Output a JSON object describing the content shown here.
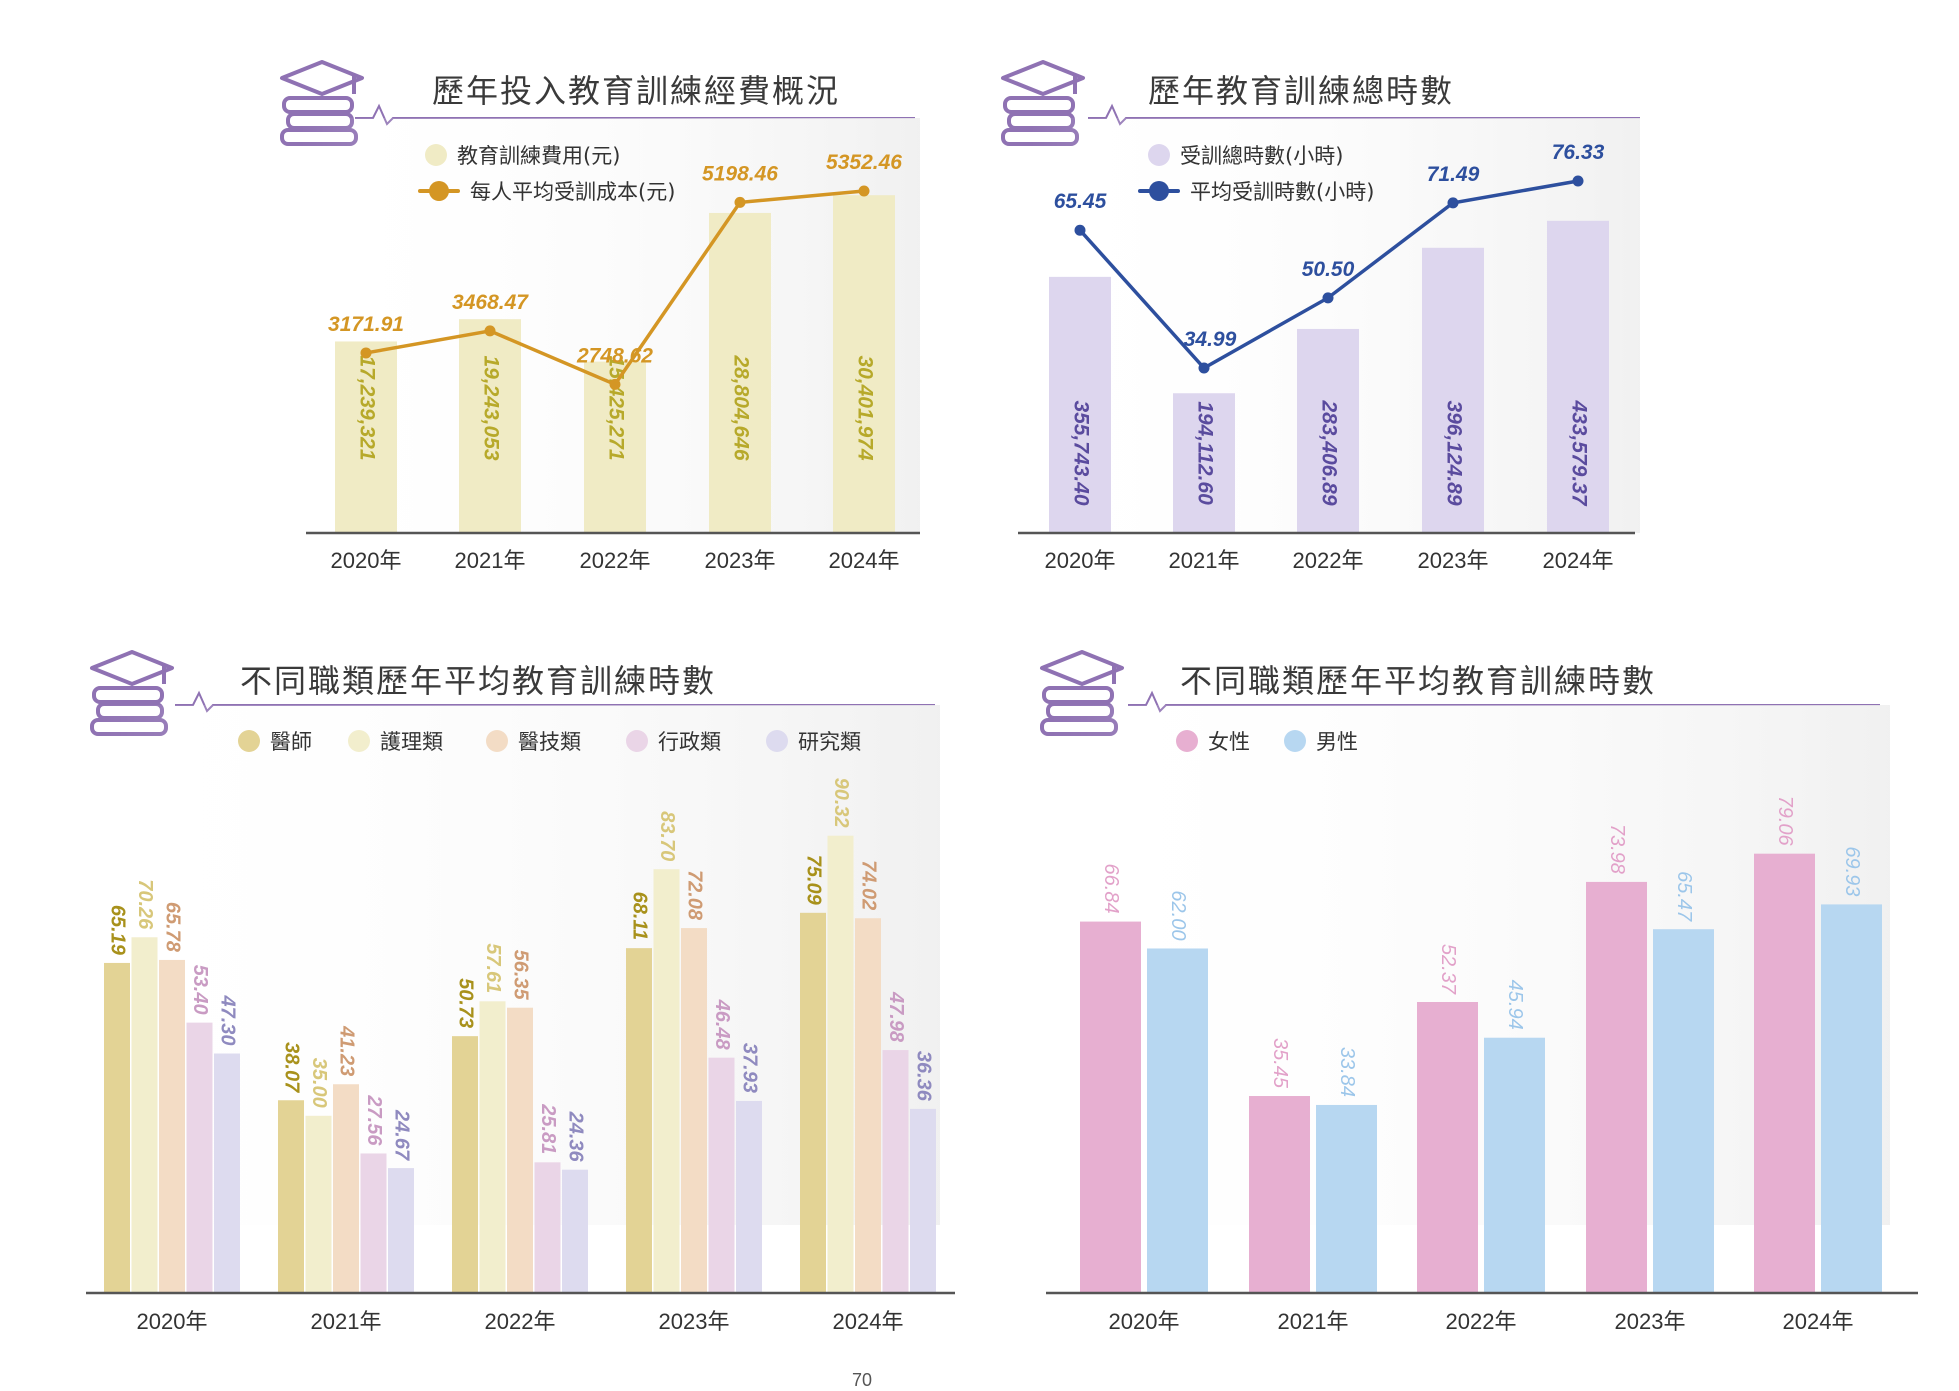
{
  "page_number": "70",
  "chart_data": [
    {
      "id": "c1",
      "type": "bar",
      "title": "歷年投入教育訓練經費概況",
      "categories": [
        "2020年",
        "2021年",
        "2022年",
        "2023年",
        "2024年"
      ],
      "series": [
        {
          "name": "教育訓練費用(元)",
          "type": "bar",
          "values": [
            17239321,
            19243053,
            15425271,
            28804646,
            30401974
          ],
          "labels": [
            "17,239,321",
            "19,243,053",
            "15,425,271",
            "28,804,646",
            "30,401,974"
          ],
          "color": "#f0ebc5",
          "label_color": "#b7a92a"
        },
        {
          "name": "每人平均受訓成本(元)",
          "type": "line",
          "values": [
            3171.91,
            3468.47,
            2748.62,
            5198.46,
            5352.46
          ],
          "labels": [
            "3171.91",
            "3468.47",
            "2748.62",
            "5198.46",
            "5352.46"
          ],
          "color": "#d49624"
        }
      ],
      "legend": "top-left",
      "grid": false
    },
    {
      "id": "c2",
      "type": "bar",
      "title": "歷年教育訓練總時數",
      "categories": [
        "2020年",
        "2021年",
        "2022年",
        "2023年",
        "2024年"
      ],
      "series": [
        {
          "name": "受訓總時數(小時)",
          "type": "bar",
          "values": [
            355743.4,
            194112.6,
            283406.89,
            396124.89,
            433579.37
          ],
          "labels": [
            "355,743.40",
            "194,112.60",
            "283,406.89",
            "396,124.89",
            "433,579.37"
          ],
          "color": "#ddd6ee",
          "label_color": "#5a4b9e"
        },
        {
          "name": "平均受訓時數(小時)",
          "type": "line",
          "values": [
            65.45,
            34.99,
            50.5,
            71.49,
            76.33
          ],
          "labels": [
            "65.45",
            "34.99",
            "50.50",
            "71.49",
            "76.33"
          ],
          "color": "#2d4f9e"
        }
      ],
      "legend": "top-left",
      "grid": false
    },
    {
      "id": "c3",
      "type": "bar",
      "title": "不同職類歷年平均教育訓練時數",
      "categories": [
        "2020年",
        "2021年",
        "2022年",
        "2023年",
        "2024年"
      ],
      "ylim": [
        0,
        95
      ],
      "series": [
        {
          "name": "醫師",
          "values": [
            65.19,
            38.07,
            50.73,
            68.11,
            75.09
          ],
          "labels": [
            "65.19",
            "38.07",
            "50.73",
            "68.11",
            "75.09"
          ],
          "color": "#e3d395",
          "label_color": "#a8911b"
        },
        {
          "name": "護理類",
          "values": [
            70.26,
            35.0,
            57.61,
            83.7,
            90.32
          ],
          "labels": [
            "70.26",
            "35.00",
            "57.61",
            "83.70",
            "90.32"
          ],
          "color": "#f2eecd",
          "label_color": "#d8c77a"
        },
        {
          "name": "醫技類",
          "values": [
            65.78,
            41.23,
            56.35,
            72.08,
            74.02
          ],
          "labels": [
            "65.78",
            "41.23",
            "56.35",
            "72.08",
            "74.02"
          ],
          "color": "#f3dcc5",
          "label_color": "#cf9b73"
        },
        {
          "name": "行政類",
          "values": [
            53.4,
            27.56,
            25.81,
            46.48,
            47.98
          ],
          "labels": [
            "53.40",
            "27.56",
            "25.81",
            "46.48",
            "47.98"
          ],
          "color": "#ead5e7",
          "label_color": "#c99bc3"
        },
        {
          "name": "研究類",
          "values": [
            47.3,
            24.67,
            24.36,
            37.93,
            36.36
          ],
          "labels": [
            "47.30",
            "24.67",
            "24.36",
            "37.93",
            "36.36"
          ],
          "color": "#dddbef",
          "label_color": "#8f8abf"
        }
      ],
      "legend": "top-left",
      "grid": false
    },
    {
      "id": "c4",
      "type": "bar",
      "title": "不同職類歷年平均教育訓練時數",
      "categories": [
        "2020年",
        "2021年",
        "2022年",
        "2023年",
        "2024年"
      ],
      "ylim": [
        0,
        88
      ],
      "series": [
        {
          "name": "女性",
          "values": [
            66.84,
            35.45,
            52.37,
            73.98,
            79.06
          ],
          "labels": [
            "66.84",
            "35.45",
            "52.37",
            "73.98",
            "79.06"
          ],
          "color": "#e7afd1",
          "label_color": "#e2a1c9"
        },
        {
          "name": "男性",
          "values": [
            62.0,
            33.84,
            45.94,
            65.47,
            69.93
          ],
          "labels": [
            "62.00",
            "33.84",
            "45.94",
            "65.47",
            "69.93"
          ],
          "color": "#b7d7f1",
          "label_color": "#9cc6ea"
        }
      ],
      "legend": "top-left",
      "grid": false
    }
  ]
}
